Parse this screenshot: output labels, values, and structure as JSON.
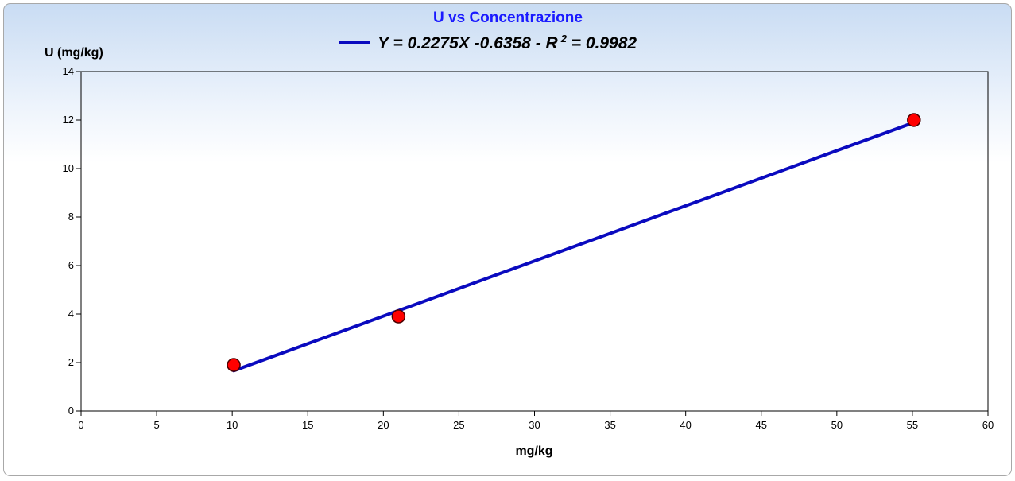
{
  "chart_data": {
    "type": "scatter",
    "title": "U vs Concentrazione",
    "xlabel": "mg/kg",
    "ylabel": "U (mg/kg)",
    "xlim": [
      0,
      60
    ],
    "ylim": [
      0,
      14
    ],
    "x_ticks": [
      "0",
      "5",
      "10",
      "15",
      "20",
      "25",
      "30",
      "35",
      "40",
      "45",
      "50",
      "55",
      "60"
    ],
    "y_ticks": [
      "0",
      "2",
      "4",
      "6",
      "8",
      "10",
      "12",
      "14"
    ],
    "grid": false,
    "legend_position": "top-center",
    "points": [
      {
        "x": 10.1,
        "y": 1.9
      },
      {
        "x": 21.0,
        "y": 3.9
      },
      {
        "x": 55.1,
        "y": 12.0
      }
    ],
    "fit": {
      "slope": 0.2275,
      "intercept": -0.6358,
      "x_start": 10.1,
      "x_end": 55.1,
      "legend_prefix": "Y = 0.2275X -0.6358 - R",
      "legend_sup": "2",
      "legend_suffix": " = 0.9982"
    },
    "colors": {
      "title": "#1a1aff",
      "fit_line": "#0a0abf",
      "point_fill": "#ff0000",
      "point_stroke": "#4a0000",
      "axis": "#000000"
    }
  }
}
